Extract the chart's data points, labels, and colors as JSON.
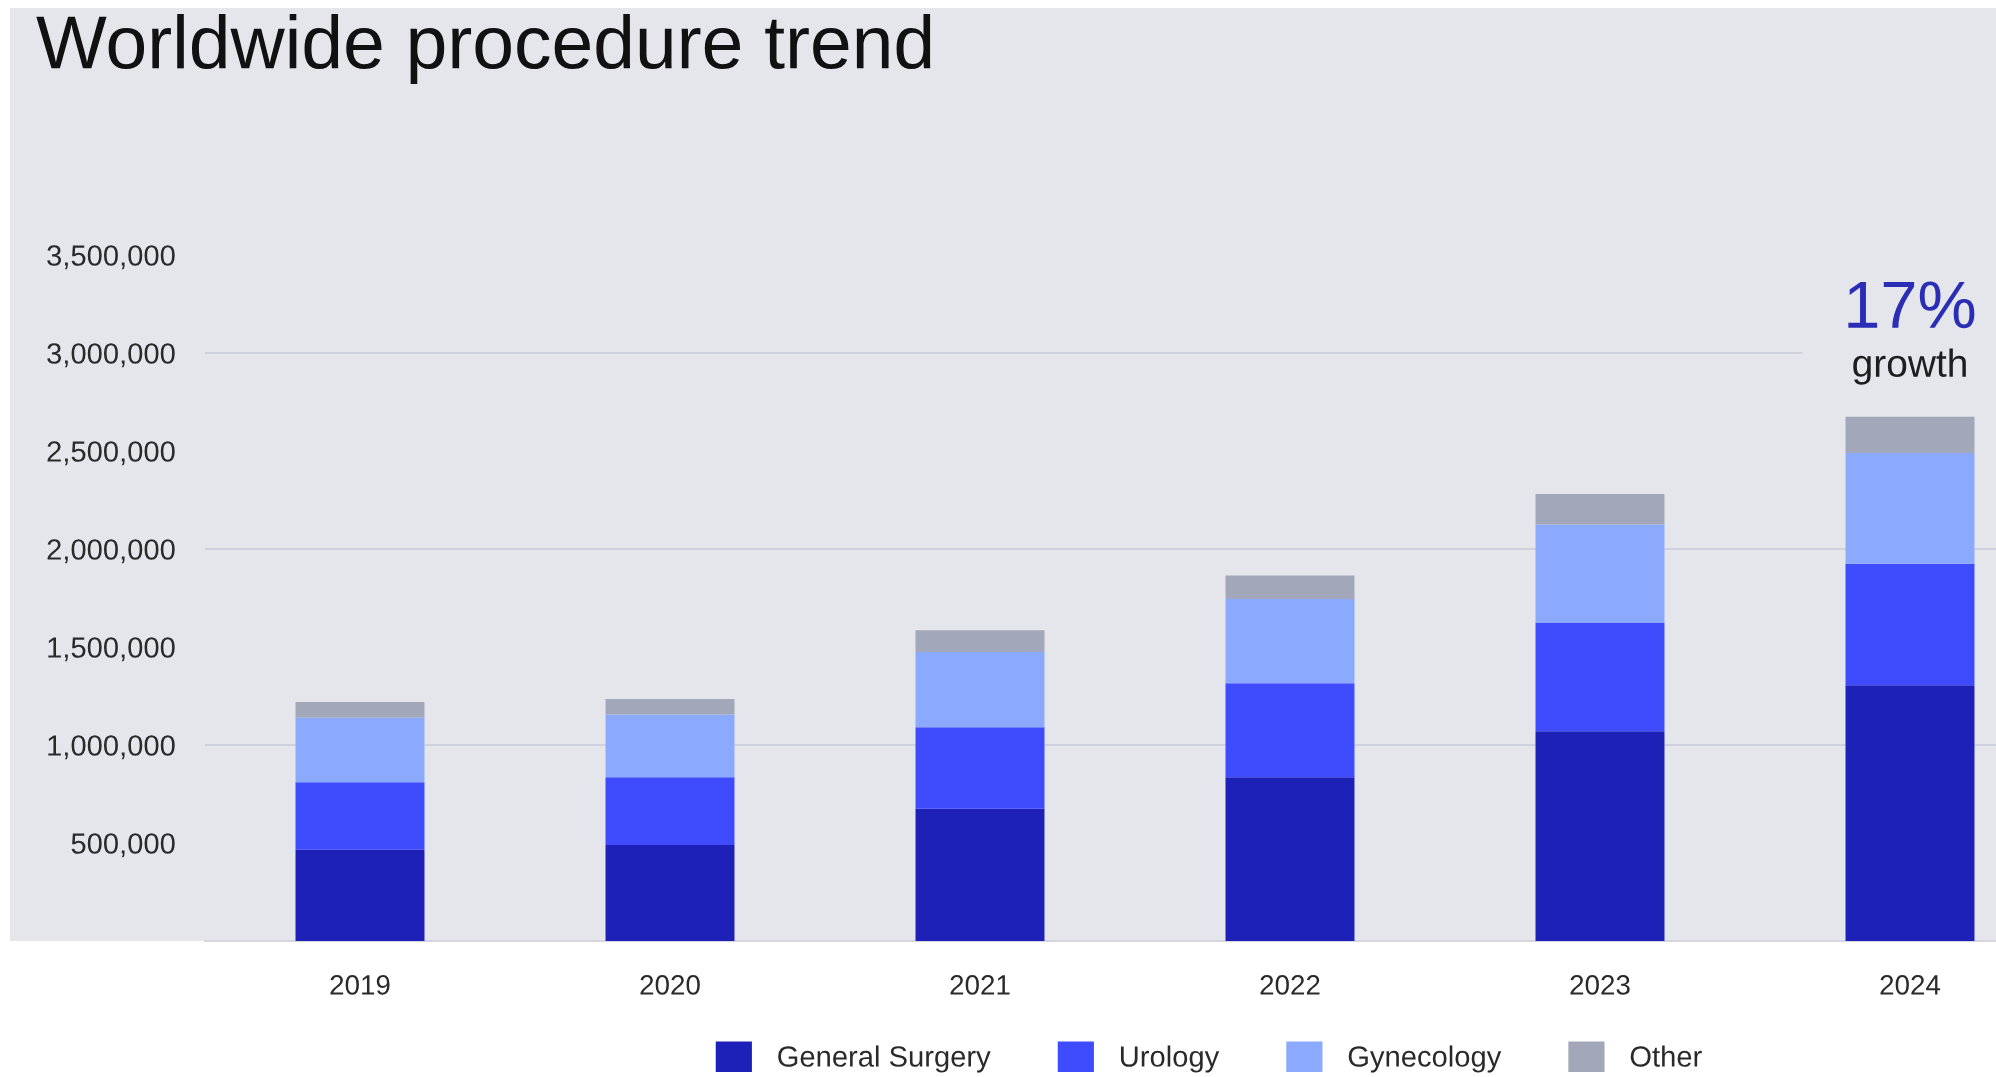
{
  "chart_data": {
    "type": "bar",
    "title": "Worldwide procedure trend",
    "stacked": true,
    "categories": [
      "2019",
      "2020",
      "2021",
      "2022",
      "2023",
      "2024"
    ],
    "series": [
      {
        "name": "General Surgery",
        "color": "#1d21b7",
        "values": [
          465000,
          490000,
          675000,
          835000,
          1070000,
          1305000
        ]
      },
      {
        "name": "Urology",
        "color": "#3e4cfe",
        "values": [
          345000,
          345000,
          415000,
          480000,
          555000,
          620000
        ]
      },
      {
        "name": "Gynecology",
        "color": "#8ba9fd",
        "values": [
          330000,
          320000,
          385000,
          430000,
          500000,
          565000
        ]
      },
      {
        "name": "Other",
        "color": "#a2a7b9",
        "values": [
          80000,
          80000,
          110000,
          120000,
          155000,
          185000
        ]
      }
    ],
    "ylim": [
      0,
      3500000
    ],
    "yticks": [
      {
        "value": 500000,
        "label": "500,000"
      },
      {
        "value": 1000000,
        "label": "1,000,000"
      },
      {
        "value": 1500000,
        "label": "1,500,000"
      },
      {
        "value": 2000000,
        "label": "2,000,000"
      },
      {
        "value": 2500000,
        "label": "2,500,000"
      },
      {
        "value": 3000000,
        "label": "3,000,000"
      },
      {
        "value": 3500000,
        "label": "3,500,000"
      }
    ],
    "ref_lines": [
      {
        "axis": "y",
        "value": 1000000,
        "color": "#d0d1df"
      },
      {
        "axis": "y",
        "value": 2000000,
        "color": "#d0d1df"
      },
      {
        "axis": "y",
        "value": 3000000,
        "color": "#d0d1df"
      }
    ],
    "annotations": [
      "17%",
      "growth"
    ],
    "legend": "bottom"
  }
}
